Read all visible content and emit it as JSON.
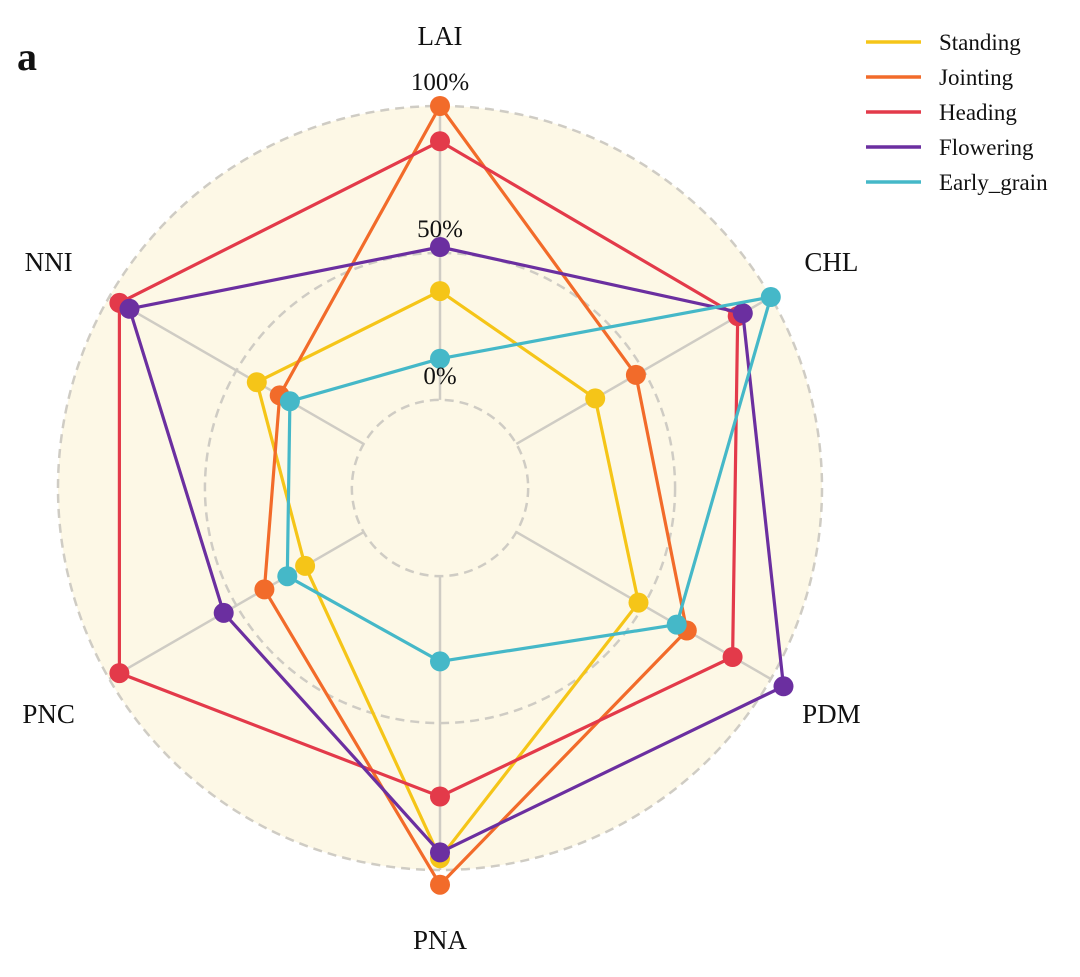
{
  "chart_data": {
    "type": "radar",
    "panel_label": "a",
    "axes": [
      "LAI",
      "CHL",
      "PDM",
      "PNA",
      "PNC",
      "NNI"
    ],
    "rlim": [
      -30,
      100
    ],
    "tick_values": [
      0,
      50,
      100
    ],
    "tick_labels": [
      "0%",
      "50%",
      "100%"
    ],
    "grid": "dashed circles",
    "legend_position": "top-right",
    "series": [
      {
        "name": "Standing",
        "color": "#F5C518",
        "values": [
          37,
          31,
          48,
          96,
          23,
          42
        ]
      },
      {
        "name": "Jointing",
        "color": "#F26B2A",
        "values": [
          100,
          47,
          67,
          105,
          39,
          33
        ]
      },
      {
        "name": "Heading",
        "color": "#E33A4A",
        "values": [
          88,
          87,
          85,
          75,
          96,
          96
        ]
      },
      {
        "name": "Flowering",
        "color": "#6B2FA0",
        "values": [
          52,
          89,
          105,
          94,
          55,
          92
        ]
      },
      {
        "name": "Early_grain",
        "color": "#45B8C8",
        "values": [
          14,
          100,
          63,
          29,
          30,
          29
        ]
      }
    ]
  }
}
